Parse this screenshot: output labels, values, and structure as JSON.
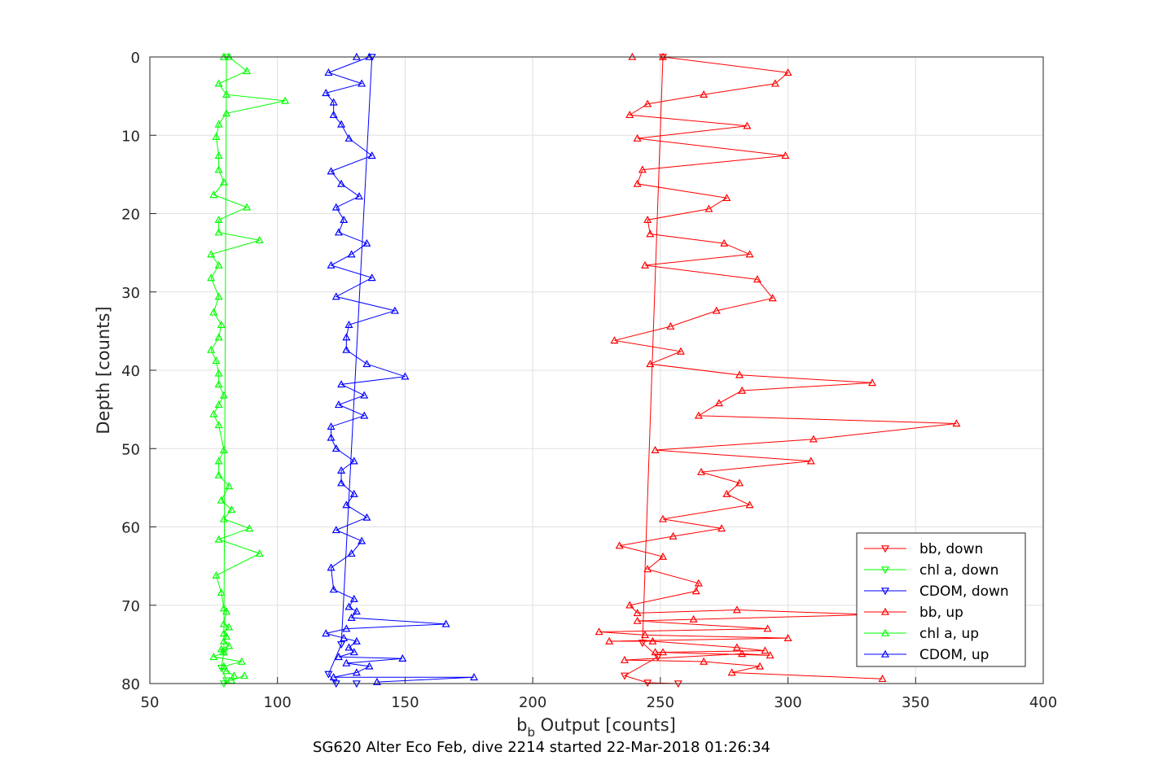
{
  "chart_data": {
    "type": "line",
    "xlabel_main": "b",
    "xlabel_sub": "b",
    "xlabel_rest": " Output [counts]",
    "ylabel": "Depth [counts]",
    "caption": "SG620 Alter Eco Feb, dive 2214 started 22-Mar-2018 01:26:34",
    "xlim": [
      50,
      400
    ],
    "ylim": [
      0,
      80
    ],
    "y_reversed": true,
    "grid": true,
    "legend_position": "bottom-right",
    "x_ticks": [
      "50",
      "100",
      "150",
      "200",
      "250",
      "300",
      "350",
      "400"
    ],
    "y_ticks": [
      "0",
      "10",
      "20",
      "30",
      "40",
      "50",
      "60",
      "70",
      "80"
    ],
    "series": [
      {
        "name": "bb, down",
        "color": "#ff0000",
        "marker": "triangle-down",
        "x": [
          251,
          243,
          249,
          236,
          245,
          257
        ],
        "y": [
          0,
          74.8,
          76.6,
          79,
          79.9,
          80
        ]
      },
      {
        "name": "chl a, down",
        "color": "#00ff00",
        "marker": "triangle-down",
        "x": [
          80,
          79,
          78,
          80,
          79
        ],
        "y": [
          0,
          76,
          78,
          79.6,
          80
        ]
      },
      {
        "name": "CDOM, down",
        "color": "#0000ff",
        "marker": "triangle-down",
        "x": [
          137,
          125,
          120,
          123,
          131
        ],
        "y": [
          0,
          75,
          78.8,
          80,
          80
        ]
      },
      {
        "name": "bb, up",
        "color": "#ff0000",
        "marker": "triangle-up",
        "x": [
          239,
          251,
          300,
          295,
          267,
          245,
          238,
          284,
          241,
          299,
          243,
          241,
          276,
          269,
          245,
          246,
          275,
          285,
          244,
          288,
          294,
          272,
          254,
          232,
          258,
          246,
          281,
          333,
          282,
          273,
          265,
          366,
          310,
          248,
          309,
          266,
          281,
          276,
          285,
          251,
          274,
          255,
          234,
          251,
          245,
          265,
          264,
          238,
          241,
          280,
          333,
          263,
          241,
          292,
          226,
          244,
          300,
          230,
          247,
          280,
          291,
          251,
          248,
          293,
          282,
          236,
          267,
          289,
          278,
          337
        ],
        "y": [
          0,
          0,
          2,
          3.4,
          4.8,
          6,
          7.4,
          8.8,
          10.4,
          12.6,
          14.4,
          16.2,
          18,
          19.4,
          20.8,
          22.6,
          23.8,
          25.2,
          26.6,
          28.4,
          30.8,
          32.4,
          34.4,
          36.2,
          37.6,
          39.2,
          40.6,
          41.6,
          42.6,
          44.2,
          45.8,
          46.8,
          48.8,
          50.2,
          51.6,
          53,
          54.4,
          55.8,
          57.2,
          59,
          60.2,
          61.2,
          62.4,
          63.8,
          65.4,
          67.2,
          68.2,
          70,
          71,
          70.6,
          71.2,
          71.8,
          72,
          73,
          73.4,
          73.8,
          74.2,
          74.6,
          74.6,
          75.4,
          75.8,
          76,
          76,
          76.4,
          76.2,
          77,
          77.2,
          77.8,
          78.6,
          79.4
        ]
      },
      {
        "name": "chl a, up",
        "color": "#00ff00",
        "marker": "triangle-up",
        "x": [
          79,
          81,
          88,
          77,
          80,
          103,
          80,
          77,
          76,
          77,
          77,
          79,
          75,
          88,
          77,
          77,
          93,
          74,
          77,
          74,
          77,
          75,
          78,
          77,
          74,
          76,
          77,
          77,
          79,
          77,
          75,
          77,
          79,
          77,
          77,
          81,
          78,
          82,
          79,
          89,
          77,
          93,
          76,
          78,
          79,
          80,
          79,
          81,
          79,
          80,
          79,
          81,
          78,
          79,
          75,
          86,
          79,
          80,
          83,
          82,
          87
        ],
        "y": [
          0,
          0,
          1.8,
          3.4,
          4.8,
          5.6,
          7.2,
          8.6,
          10.2,
          12.6,
          14.4,
          16,
          17.6,
          19.2,
          20.8,
          22.4,
          23.4,
          25.2,
          26.6,
          28.2,
          30.6,
          32.6,
          34.2,
          35.8,
          37.4,
          38.8,
          40.4,
          41.8,
          43.2,
          44.4,
          45.6,
          47,
          50.2,
          51.6,
          53.4,
          54.8,
          56.6,
          57.8,
          59,
          60.2,
          61.6,
          63.4,
          66.2,
          68.4,
          70.4,
          70.8,
          72.4,
          72.8,
          73.6,
          74,
          74.6,
          75.2,
          75.6,
          76,
          76.6,
          77.2,
          77.8,
          78.4,
          79,
          79.6,
          79
        ]
      },
      {
        "name": "CDOM, up",
        "color": "#0000ff",
        "marker": "triangle-up",
        "x": [
          131,
          136,
          120,
          133,
          119,
          122,
          122,
          125,
          128,
          137,
          121,
          125,
          132,
          123,
          126,
          124,
          135,
          129,
          121,
          137,
          123,
          146,
          128,
          127,
          127,
          135,
          150,
          125,
          134,
          124,
          134,
          121,
          121,
          123,
          130,
          125,
          125,
          130,
          127,
          135,
          123,
          133,
          129,
          121,
          122,
          130,
          128,
          131,
          129,
          166,
          127,
          119,
          126,
          131,
          128,
          130,
          124,
          149,
          127,
          136,
          131,
          122,
          177,
          139
        ],
        "y": [
          0,
          0,
          2,
          3.4,
          4.6,
          5.8,
          7.4,
          8.6,
          10.4,
          12.6,
          14.6,
          16.2,
          17.8,
          19.2,
          20.8,
          22.4,
          23.8,
          25.2,
          26.6,
          28.2,
          30.6,
          32.4,
          34.2,
          35.8,
          37.4,
          39.2,
          40.8,
          41.8,
          43.2,
          44.4,
          45.8,
          47.2,
          48.6,
          50,
          51.6,
          52.8,
          54.4,
          55.8,
          57.2,
          58.8,
          60.4,
          61.8,
          63.4,
          65.2,
          68,
          69.2,
          70.2,
          70.8,
          71.6,
          72.4,
          73,
          73.6,
          74.2,
          74.6,
          75.4,
          76,
          76.6,
          76.8,
          77.4,
          77.8,
          78.6,
          79.2,
          79.2,
          79.8
        ]
      }
    ]
  }
}
